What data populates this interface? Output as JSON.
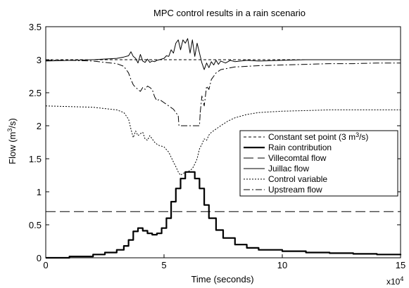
{
  "chart_data": {
    "type": "line",
    "title": "MPC control results in a rain scenario",
    "xlabel": "Time (seconds)",
    "ylabel_main": "Flow (m",
    "ylabel_sup": "3",
    "ylabel_end": "/s)",
    "x_multiplier": "x10",
    "x_multiplier_exp": "4",
    "xlim": [
      0,
      150000
    ],
    "ylim": [
      0,
      3.5
    ],
    "xticks": [
      0,
      50000,
      100000,
      150000
    ],
    "xtick_labels": [
      "0",
      "5",
      "10",
      "15"
    ],
    "yticks": [
      0,
      0.5,
      1,
      1.5,
      2,
      2.5,
      3,
      3.5
    ],
    "ytick_labels": [
      "0",
      "0.5",
      "1",
      "1.5",
      "2",
      "2.5",
      "3",
      "3.5"
    ],
    "legend_position": "right",
    "series": [
      {
        "name": "Constant set point (3 m³/s)",
        "legend_main": "Constant set point (3 m",
        "legend_sup": "3",
        "legend_end": "/s)",
        "style": "dashed-short",
        "width": 1,
        "x": [
          0,
          150000
        ],
        "y": [
          3.0,
          3.0
        ]
      },
      {
        "name": "Rain contribution",
        "style": "solid",
        "width": 2.2,
        "step": true,
        "x": [
          0,
          10000,
          20000,
          25000,
          30000,
          33000,
          35000,
          37000,
          39000,
          41000,
          43000,
          45000,
          47000,
          49000,
          51000,
          53000,
          55000,
          57000,
          59000,
          61000,
          63000,
          65000,
          67000,
          69000,
          72000,
          75000,
          80000,
          85000,
          90000,
          100000,
          110000,
          120000,
          130000,
          140000,
          150000
        ],
        "y": [
          0.0,
          0.02,
          0.05,
          0.08,
          0.12,
          0.18,
          0.27,
          0.4,
          0.45,
          0.41,
          0.37,
          0.35,
          0.37,
          0.45,
          0.6,
          0.85,
          1.05,
          1.2,
          1.3,
          1.3,
          1.2,
          1.05,
          0.8,
          0.6,
          0.42,
          0.3,
          0.2,
          0.15,
          0.12,
          0.1,
          0.08,
          0.07,
          0.06,
          0.05,
          0.04
        ]
      },
      {
        "name": "Villecomtal flow",
        "style": "dashed-long",
        "width": 1,
        "x": [
          0,
          150000
        ],
        "y": [
          0.7,
          0.7
        ]
      },
      {
        "name": "Juillac flow",
        "style": "solid",
        "width": 1,
        "x": [
          0,
          20000,
          30000,
          33000,
          35000,
          36000,
          37000,
          38000,
          39000,
          40000,
          41000,
          42000,
          43000,
          44000,
          45000,
          46000,
          47000,
          48000,
          49000,
          50000,
          51000,
          52000,
          53000,
          54000,
          55000,
          56000,
          57000,
          58000,
          59000,
          60000,
          61000,
          62000,
          63000,
          64000,
          65000,
          66000,
          67000,
          68000,
          69000,
          70000,
          71000,
          72000,
          73000,
          74000,
          76000,
          78000,
          80000,
          85000,
          90000,
          100000,
          110000,
          120000,
          130000,
          140000,
          150000
        ],
        "y": [
          2.98,
          3.0,
          3.02,
          3.04,
          3.06,
          3.12,
          3.05,
          3.02,
          2.95,
          3.08,
          2.98,
          2.96,
          3.01,
          2.96,
          2.98,
          2.97,
          2.99,
          3.0,
          3.01,
          3.02,
          3.06,
          3.05,
          3.15,
          3.1,
          3.25,
          3.3,
          3.15,
          3.3,
          3.25,
          3.32,
          3.1,
          3.3,
          3.05,
          3.25,
          3.1,
          2.95,
          2.85,
          2.95,
          2.88,
          2.97,
          2.92,
          2.99,
          2.93,
          2.98,
          2.95,
          2.99,
          2.97,
          2.99,
          2.98,
          2.99,
          3.0,
          3.0,
          3.0,
          3.0,
          3.0
        ]
      },
      {
        "name": "Control variable",
        "style": "dotted",
        "width": 1,
        "x": [
          0,
          10000,
          20000,
          25000,
          30000,
          33000,
          35000,
          36000,
          37000,
          38000,
          39000,
          40000,
          41000,
          42000,
          43000,
          44000,
          45000,
          46000,
          47000,
          48000,
          50000,
          52000,
          54000,
          55000,
          56000,
          57000,
          58000,
          60000,
          62000,
          63000,
          64000,
          65000,
          66000,
          67000,
          68000,
          69000,
          70000,
          72000,
          74000,
          77000,
          80000,
          85000,
          90000,
          100000,
          110000,
          120000,
          130000,
          140000,
          150000
        ],
        "y": [
          2.3,
          2.29,
          2.28,
          2.26,
          2.24,
          2.2,
          2.1,
          1.95,
          1.82,
          1.92,
          1.85,
          1.88,
          1.9,
          1.8,
          1.78,
          1.85,
          1.8,
          1.75,
          1.72,
          1.7,
          1.68,
          1.6,
          1.45,
          1.38,
          1.3,
          1.25,
          1.28,
          1.3,
          1.35,
          1.42,
          1.5,
          1.65,
          1.72,
          1.8,
          1.78,
          1.86,
          1.9,
          1.95,
          2.0,
          2.07,
          2.12,
          2.17,
          2.2,
          2.22,
          2.23,
          2.24,
          2.24,
          2.24,
          2.24
        ]
      },
      {
        "name": "Upstream flow",
        "style": "dashdot",
        "width": 1,
        "segments": [
          {
            "x": [
              0,
              10000,
              20000,
              25000,
              30000,
              33000,
              35000,
              36000,
              37000,
              38000,
              39000,
              40000,
              41000,
              42000,
              43000,
              44000,
              45000,
              46000,
              47000,
              48000,
              50000,
              52000,
              54000,
              55000,
              56000
            ],
            "y": [
              2.99,
              2.99,
              2.98,
              2.96,
              2.94,
              2.9,
              2.8,
              2.7,
              2.62,
              2.58,
              2.55,
              2.52,
              2.58,
              2.55,
              2.6,
              2.58,
              2.55,
              2.44,
              2.38,
              2.4,
              2.35,
              2.3,
              2.25,
              2.2,
              2.15
            ]
          },
          {
            "x": [
              56000,
              56300,
              65000,
              65300
            ],
            "y": [
              2.15,
              2.0,
              2.0,
              2.2
            ]
          },
          {
            "x": [
              65300,
              66000,
              67000,
              68000,
              69000,
              70000,
              71000,
              72000,
              74000,
              77000,
              80000,
              85000,
              90000,
              100000,
              110000,
              120000,
              130000,
              140000,
              150000
            ],
            "y": [
              2.2,
              2.45,
              2.3,
              2.6,
              2.55,
              2.7,
              2.75,
              2.8,
              2.85,
              2.87,
              2.89,
              2.9,
              2.91,
              2.92,
              2.93,
              2.94,
              2.94,
              2.95,
              2.95
            ]
          }
        ]
      }
    ]
  }
}
